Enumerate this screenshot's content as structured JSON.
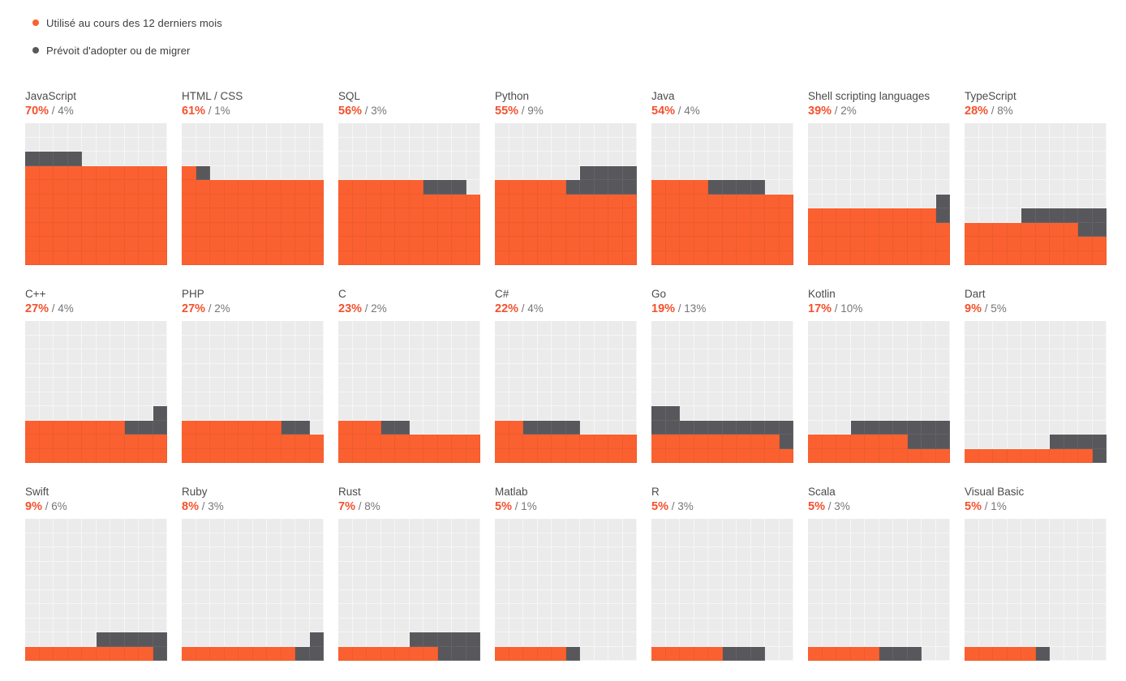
{
  "legend": [
    {
      "key": "used",
      "label": "Utilisé au cours des 12 derniers mois",
      "color": "#fb6130"
    },
    {
      "key": "plan",
      "label": "Prévoit d'adopter ou de migrer",
      "color": "#58585c"
    }
  ],
  "colors": {
    "used": "#fb6130",
    "plan": "#58585c",
    "cell_bg": "#ebebeb",
    "accent_text": "#f4512d",
    "title_text": "#4b4b4b",
    "muted_text": "#76767c"
  },
  "chart_data": {
    "type": "heatmap",
    "subtype": "waffle",
    "grid": {
      "rows": 10,
      "cols": 10,
      "cell_unit": "1 cell = 1%"
    },
    "fill_order": "used fills bottom-up left-to-right; plan continues from used end and snakes serpentine upward",
    "series": [
      {
        "name": "Utilisé au cours des 12 derniers mois",
        "key": "used"
      },
      {
        "name": "Prévoit d'adopter ou de migrer",
        "key": "plan"
      }
    ],
    "languages": [
      {
        "name": "JavaScript",
        "used": 70,
        "plan": 4
      },
      {
        "name": "HTML / CSS",
        "used": 61,
        "plan": 1
      },
      {
        "name": "SQL",
        "used": 56,
        "plan": 3
      },
      {
        "name": "Python",
        "used": 55,
        "plan": 9
      },
      {
        "name": "Java",
        "used": 54,
        "plan": 4
      },
      {
        "name": "Shell scripting languages",
        "used": 39,
        "plan": 2
      },
      {
        "name": "TypeScript",
        "used": 28,
        "plan": 8
      },
      {
        "name": "C++",
        "used": 27,
        "plan": 4
      },
      {
        "name": "PHP",
        "used": 27,
        "plan": 2
      },
      {
        "name": "C",
        "used": 23,
        "plan": 2
      },
      {
        "name": "C#",
        "used": 22,
        "plan": 4
      },
      {
        "name": "Go",
        "used": 19,
        "plan": 13
      },
      {
        "name": "Kotlin",
        "used": 17,
        "plan": 10
      },
      {
        "name": "Dart",
        "used": 9,
        "plan": 5
      },
      {
        "name": "Swift",
        "used": 9,
        "plan": 6
      },
      {
        "name": "Ruby",
        "used": 8,
        "plan": 3
      },
      {
        "name": "Rust",
        "used": 7,
        "plan": 8
      },
      {
        "name": "Matlab",
        "used": 5,
        "plan": 1
      },
      {
        "name": "R",
        "used": 5,
        "plan": 3
      },
      {
        "name": "Scala",
        "used": 5,
        "plan": 3
      },
      {
        "name": "Visual Basic",
        "used": 5,
        "plan": 1
      }
    ]
  }
}
